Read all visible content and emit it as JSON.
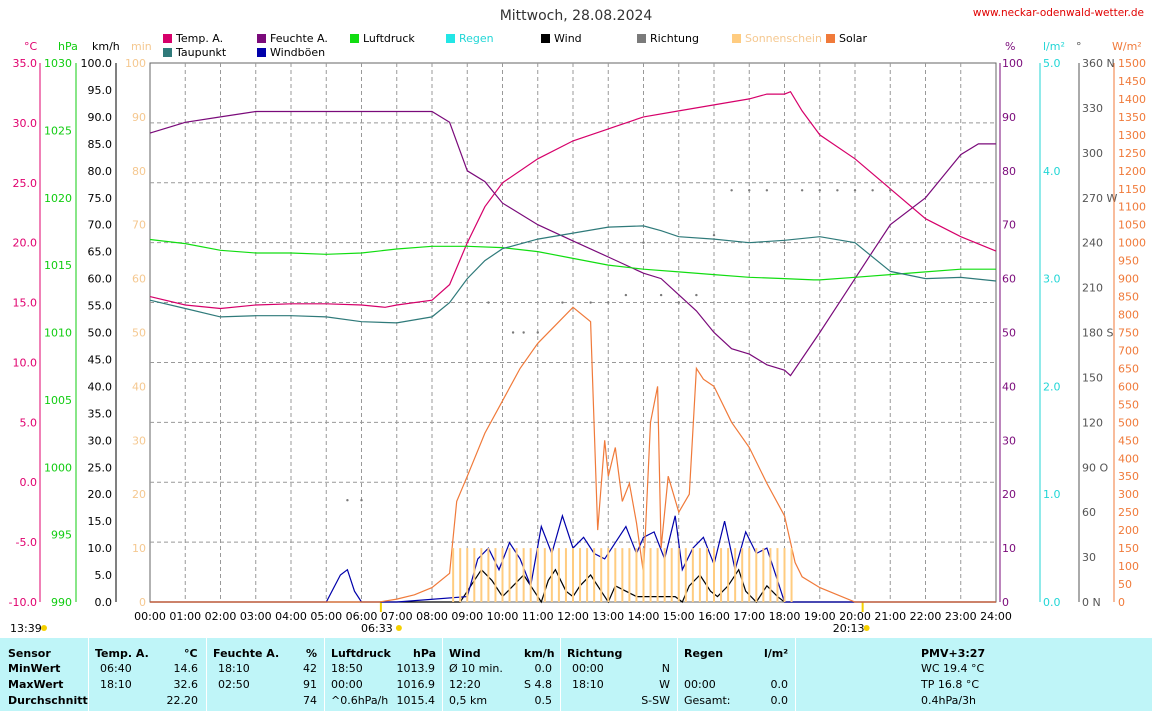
{
  "header": {
    "title": "Mittwoch, 28.08.2024",
    "site": "www.neckar-odenwald-wetter.de"
  },
  "legend": [
    {
      "label": "Temp. A.",
      "color": "#d6006a"
    },
    {
      "label": "Feuchte A.",
      "color": "#7a0a7a"
    },
    {
      "label": "Luftdruck",
      "color": "#11dd11"
    },
    {
      "label": "Regen",
      "color": "#22e6e6"
    },
    {
      "label": "Wind",
      "color": "#000000"
    },
    {
      "label": "Richtung",
      "color": "#7a7a7a"
    },
    {
      "label": "Sonnenschein",
      "color": "#ffcc80"
    },
    {
      "label": "Solar",
      "color": "#f07a3a"
    },
    {
      "label": "Taupunkt",
      "color": "#2f7a7a"
    },
    {
      "label": "Windböen",
      "color": "#0000aa"
    }
  ],
  "axes": {
    "temp": {
      "unit": "°C",
      "ticks": [
        "35.0",
        "30.0",
        "25.0",
        "20.0",
        "15.0",
        "10.0",
        "5.0",
        "0.0",
        "-5.0",
        "-10.0"
      ]
    },
    "pressure": {
      "unit": "hPa",
      "ticks": [
        "1030",
        "1025",
        "1020",
        "1015",
        "1010",
        "1005",
        "1000",
        "995",
        "990"
      ]
    },
    "wind": {
      "unit": "km/h",
      "ticks": [
        "100.0",
        "95.0",
        "90.0",
        "85.0",
        "80.0",
        "75.0",
        "70.0",
        "65.0",
        "60.0",
        "55.0",
        "50.0",
        "45.0",
        "40.0",
        "35.0",
        "30.0",
        "25.0",
        "20.0",
        "15.0",
        "10.0",
        "5.0",
        "0.0"
      ]
    },
    "minutes": {
      "unit": "min",
      "ticks": [
        "100",
        "90",
        "80",
        "70",
        "60",
        "50",
        "40",
        "30",
        "20",
        "10",
        "0"
      ]
    },
    "humidity": {
      "unit": "%",
      "ticks": [
        "100",
        "90",
        "80",
        "70",
        "60",
        "50",
        "40",
        "30",
        "20",
        "10",
        "0"
      ]
    },
    "rain": {
      "unit": "l/m²",
      "ticks": [
        "5.0",
        "4.0",
        "3.0",
        "2.0",
        "1.0",
        "0.0"
      ]
    },
    "direction": {
      "unit": "°",
      "ticks": [
        "360 N",
        "330",
        "300",
        "270 W",
        "240",
        "210",
        "180 S",
        "150",
        "120",
        "90 O",
        "60",
        "30",
        "0 N"
      ]
    },
    "solar": {
      "unit": "W/m²",
      "ticks": [
        "1500",
        "1450",
        "1400",
        "1350",
        "1300",
        "1250",
        "1200",
        "1150",
        "1100",
        "1050",
        "1000",
        "950",
        "900",
        "850",
        "800",
        "750",
        "700",
        "650",
        "600",
        "550",
        "500",
        "450",
        "400",
        "350",
        "300",
        "250",
        "200",
        "150",
        "100",
        "50",
        "0"
      ]
    },
    "time": {
      "ticks": [
        "00:00",
        "01:00",
        "02:00",
        "03:00",
        "04:00",
        "05:00",
        "06:00",
        "07:00",
        "08:00",
        "09:00",
        "10:00",
        "11:00",
        "12:00",
        "13:00",
        "14:00",
        "15:00",
        "16:00",
        "17:00",
        "18:00",
        "19:00",
        "20:00",
        "21:00",
        "22:00",
        "23:00",
        "24:00"
      ]
    }
  },
  "markers": {
    "now": "13:39",
    "sunrise": "06:33",
    "sunset": "20:13"
  },
  "chart_data": {
    "type": "line",
    "title": "Mittwoch, 28.08.2024",
    "x_unit": "hour",
    "xlim": [
      0,
      24
    ],
    "series": [
      {
        "name": "Temp. A.",
        "unit": "°C",
        "ylim": [
          -10,
          35
        ],
        "x": [
          0,
          1,
          2,
          3,
          4,
          5,
          6,
          6.67,
          7,
          8,
          8.5,
          9,
          9.5,
          10,
          11,
          12,
          13,
          14,
          15,
          16,
          17,
          17.5,
          18,
          18.17,
          18.5,
          19,
          20,
          21,
          22,
          23,
          24
        ],
        "y": [
          15.5,
          14.8,
          14.5,
          14.8,
          14.9,
          14.9,
          14.8,
          14.6,
          14.8,
          15.2,
          16.5,
          20,
          23,
          25,
          27,
          28.5,
          29.5,
          30.5,
          31,
          31.5,
          32,
          32.4,
          32.4,
          32.6,
          31,
          29,
          27,
          24.5,
          22,
          20.5,
          19.3
        ]
      },
      {
        "name": "Feuchte A.",
        "unit": "%",
        "ylim": [
          0,
          100
        ],
        "x": [
          0,
          1,
          2,
          3,
          4,
          5,
          6,
          7,
          8,
          8.5,
          9,
          9.5,
          10,
          11,
          12,
          13,
          14,
          14.5,
          15,
          15.5,
          16,
          16.5,
          17,
          17.5,
          18,
          18.17,
          19,
          19.5,
          20,
          20.5,
          21,
          22,
          22.5,
          23,
          23.5,
          24
        ],
        "y": [
          87,
          89,
          90,
          91,
          91,
          91,
          91,
          91,
          91,
          89,
          80,
          78,
          74,
          70,
          67,
          64,
          61,
          60,
          57,
          54,
          50,
          47,
          46,
          44,
          43,
          42,
          50,
          55,
          60,
          65,
          70,
          75,
          79,
          83,
          85,
          85
        ]
      },
      {
        "name": "Luftdruck",
        "unit": "hPa",
        "ylim": [
          990,
          1030
        ],
        "x": [
          0,
          1,
          2,
          3,
          4,
          5,
          6,
          7,
          8,
          9,
          10,
          11,
          12,
          13,
          14,
          15,
          16,
          17,
          18,
          18.83,
          19,
          20,
          21,
          22,
          23,
          24
        ],
        "y": [
          1016.9,
          1016.6,
          1016.1,
          1015.9,
          1015.9,
          1015.8,
          1015.9,
          1016.2,
          1016.4,
          1016.4,
          1016.3,
          1016.0,
          1015.5,
          1015.0,
          1014.7,
          1014.5,
          1014.3,
          1014.1,
          1014.0,
          1013.9,
          1013.9,
          1014.1,
          1014.3,
          1014.5,
          1014.7,
          1014.7
        ]
      },
      {
        "name": "Taupunkt",
        "unit": "°C",
        "ylim": [
          -10,
          35
        ],
        "x": [
          0,
          1,
          2,
          3,
          4,
          5,
          6,
          7,
          8,
          8.5,
          9,
          9.5,
          10,
          11,
          12,
          13,
          14,
          14.5,
          15,
          16,
          17,
          18,
          19,
          20,
          21,
          22,
          23,
          24
        ],
        "y": [
          15.2,
          14.5,
          13.8,
          13.9,
          13.9,
          13.8,
          13.4,
          13.3,
          13.8,
          15,
          17,
          18.5,
          19.5,
          20.3,
          20.8,
          21.3,
          21.4,
          21.0,
          20.5,
          20.3,
          20,
          20.2,
          20.5,
          20,
          17.6,
          17.0,
          17.1,
          16.8
        ]
      },
      {
        "name": "Wind",
        "unit": "km/h",
        "ylim": [
          0,
          100
        ],
        "x": [
          0,
          8.8,
          9,
          9.4,
          9.7,
          10,
          10.3,
          10.6,
          10.9,
          11.1,
          11.3,
          11.5,
          11.8,
          12,
          12.2,
          12.5,
          12.8,
          13,
          13.2,
          13.5,
          13.8,
          14,
          14.3,
          14.6,
          14.9,
          15.1,
          15.3,
          15.6,
          15.9,
          16.1,
          16.4,
          16.7,
          16.9,
          17.2,
          17.5,
          17.8,
          18,
          24
        ],
        "y": [
          0,
          0,
          2,
          6,
          4,
          1,
          3,
          5,
          2,
          0,
          4,
          6,
          2,
          1,
          3,
          5,
          2,
          0,
          3,
          2,
          1,
          1,
          1,
          1,
          1,
          0,
          3,
          5,
          2,
          1,
          3,
          6,
          2,
          0,
          3,
          1,
          0,
          0
        ]
      },
      {
        "name": "Windböen",
        "unit": "km/h",
        "ylim": [
          0,
          100
        ],
        "x": [
          0,
          5,
          5.4,
          5.6,
          5.8,
          6,
          7,
          9,
          9.3,
          9.6,
          9.9,
          10.2,
          10.5,
          10.8,
          11.1,
          11.4,
          11.7,
          12,
          12.3,
          12.6,
          12.9,
          13.2,
          13.5,
          13.8,
          14,
          14.3,
          14.6,
          14.9,
          15.1,
          15.4,
          15.7,
          16,
          16.3,
          16.6,
          16.9,
          17.2,
          17.5,
          17.8,
          18,
          24
        ],
        "y": [
          0,
          0,
          5,
          6,
          2,
          0,
          0,
          1,
          8,
          10,
          6,
          11,
          8,
          3,
          14,
          9,
          16,
          10,
          12,
          9,
          8,
          11,
          14,
          9,
          12,
          13,
          8,
          16,
          6,
          10,
          12,
          7,
          15,
          6,
          13,
          9,
          10,
          4,
          0,
          0
        ]
      },
      {
        "name": "Solar",
        "unit": "W/m²",
        "ylim": [
          0,
          1500
        ],
        "x": [
          0,
          6.5,
          7,
          7.5,
          8,
          8.5,
          8.7,
          9,
          9.5,
          10,
          10.5,
          11,
          11.5,
          12,
          12.5,
          12.7,
          12.9,
          13,
          13.2,
          13.4,
          13.6,
          13.8,
          14,
          14.2,
          14.4,
          14.5,
          14.7,
          15,
          15.3,
          15.5,
          15.7,
          16,
          16.5,
          17,
          17.5,
          18,
          18.3,
          18.5,
          19,
          19.5,
          20,
          20.2,
          24
        ],
        "y": [
          0,
          0,
          8,
          20,
          40,
          80,
          280,
          350,
          470,
          560,
          650,
          720,
          770,
          820,
          780,
          200,
          450,
          350,
          430,
          280,
          330,
          220,
          80,
          500,
          600,
          150,
          350,
          250,
          300,
          650,
          620,
          600,
          500,
          430,
          330,
          240,
          110,
          70,
          40,
          20,
          0,
          0,
          0
        ]
      },
      {
        "name": "Richtung",
        "unit": "°",
        "ylim": [
          0,
          360
        ],
        "x": [
          5.6,
          6,
          9.6,
          10.3,
          10.6,
          11,
          11.7,
          12.5,
          13,
          13.5,
          14,
          14.5,
          15,
          15.5,
          16,
          16.5,
          17,
          17.5,
          18,
          18.5,
          19,
          19.5,
          20,
          20.5,
          21
        ],
        "y": [
          68,
          68,
          200,
          180,
          180,
          180,
          200,
          200,
          200,
          205,
          240,
          205,
          200,
          205,
          245,
          275,
          275,
          275,
          240,
          275,
          275,
          275,
          275,
          275,
          275
        ]
      },
      {
        "name": "Sonnenschein",
        "unit": "min",
        "ylim": [
          0,
          100
        ],
        "x": [
          8.6,
          8.8,
          9,
          9.2,
          9.4,
          9.6,
          9.8,
          10,
          10.2,
          10.4,
          10.6,
          10.8,
          11,
          11.2,
          11.4,
          11.6,
          11.8,
          12,
          12.2,
          12.4,
          12.6,
          12.8,
          13,
          13.2,
          13.4,
          13.6,
          13.8,
          14,
          14.2,
          14.4,
          14.6,
          14.8,
          15,
          15.2,
          15.4,
          15.6,
          15.8,
          16,
          16.2,
          16.4,
          16.6,
          16.8,
          17,
          17.2,
          17.4,
          17.6,
          17.8,
          18,
          18.2
        ],
        "y": [
          10,
          10,
          10,
          10,
          10,
          10,
          10,
          10,
          10,
          10,
          10,
          10,
          10,
          10,
          10,
          10,
          10,
          10,
          10,
          10,
          10,
          10,
          10,
          10,
          10,
          10,
          10,
          10,
          10,
          10,
          10,
          10,
          10,
          10,
          10,
          10,
          10,
          10,
          10,
          10,
          10,
          10,
          10,
          10,
          10,
          10,
          10,
          10,
          10
        ]
      }
    ]
  },
  "table": {
    "headers": {
      "sensor": "Sensor",
      "temp": "Temp. A.",
      "temp_unit": "°C",
      "hum": "Feuchte A.",
      "hum_unit": "%",
      "press": "Luftdruck",
      "press_unit": "hPa",
      "wind": "Wind",
      "wind_unit": "km/h",
      "dir": "Richtung",
      "rain": "Regen",
      "rain_unit": "l/m²",
      "pmv": "PMV+3:27"
    },
    "rows": [
      {
        "label": "MinWert",
        "temp_time": "06:40",
        "temp_val": "14.6",
        "hum_time": "18:10",
        "hum_val": "42",
        "press_time": "18:50",
        "press_val": "1013.9",
        "wind_time": "Ø 10 min.",
        "wind_val": "0.0",
        "dir_time": "00:00",
        "dir_val": "N",
        "rain_time": "",
        "rain_val": "",
        "extra": "WC 19.4 °C"
      },
      {
        "label": "MaxWert",
        "temp_time": "18:10",
        "temp_val": "32.6",
        "hum_time": "02:50",
        "hum_val": "91",
        "press_time": "00:00",
        "press_val": "1016.9",
        "wind_time": "12:20",
        "wind_val": "S 4.8",
        "dir_time": "18:10",
        "dir_val": "W",
        "rain_time": "00:00",
        "rain_val": "0.0",
        "extra": "TP 16.8 °C"
      },
      {
        "label": "Durchschnitt",
        "temp_time": "",
        "temp_val": "22.20",
        "hum_time": "",
        "hum_val": "74",
        "press_time": "^0.6hPa/h",
        "press_val": "1015.4",
        "wind_time": "0,5 km",
        "wind_val": "0.5",
        "dir_time": "",
        "dir_val": "S-SW",
        "rain_time": "Gesamt:",
        "rain_val": "0.0",
        "extra": "0.4hPa/3h"
      }
    ]
  }
}
